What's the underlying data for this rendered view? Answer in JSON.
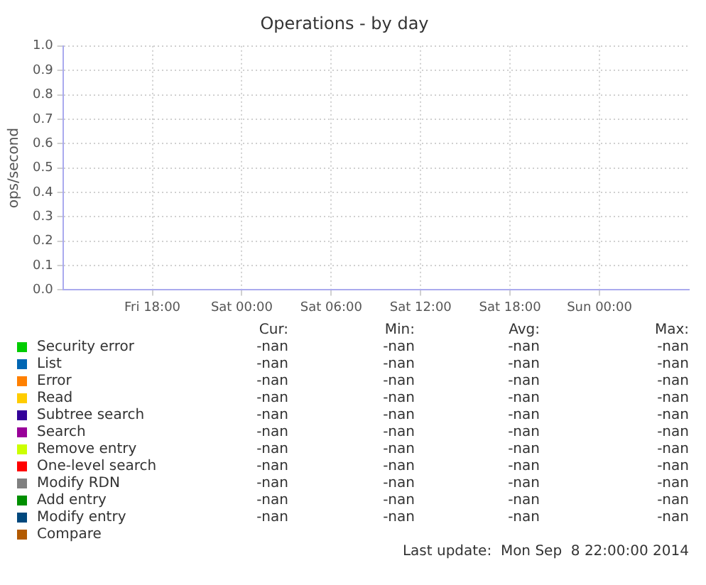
{
  "chart_data": {
    "type": "line",
    "title": "Operations - by day",
    "ylabel": "ops/second",
    "categories": [
      null,
      "Fri 18:00",
      "Sat 00:00",
      "Sat 06:00",
      "Sat 12:00",
      "Sat 18:00",
      "Sun 00:00",
      null
    ],
    "ylim": [
      0,
      1
    ],
    "yticks": [
      {
        "value": 0,
        "label": "0.0"
      },
      {
        "value": 0.1,
        "label": "0.1"
      },
      {
        "value": 0.2,
        "label": "0.2"
      },
      {
        "value": 0.3,
        "label": "0.3"
      },
      {
        "value": 0.4,
        "label": "0.4"
      },
      {
        "value": 0.5,
        "label": "0.5"
      },
      {
        "value": 0.6,
        "label": "0.6"
      },
      {
        "value": 0.7,
        "label": "0.7"
      },
      {
        "value": 0.8,
        "label": "0.8"
      },
      {
        "value": 0.9,
        "label": "0.9"
      },
      {
        "value": 1,
        "label": "1.0"
      }
    ],
    "grid": true,
    "legend": "bottom",
    "series": [
      {
        "name": "Security error",
        "color": "#00cc00",
        "values": [
          null,
          null,
          null,
          null,
          null,
          null,
          null,
          null
        ]
      },
      {
        "name": "List",
        "color": "#0066b3",
        "values": [
          null,
          null,
          null,
          null,
          null,
          null,
          null,
          null
        ]
      },
      {
        "name": "Error",
        "color": "#ff8000",
        "values": [
          null,
          null,
          null,
          null,
          null,
          null,
          null,
          null
        ]
      },
      {
        "name": "Read",
        "color": "#ffcc00",
        "values": [
          null,
          null,
          null,
          null,
          null,
          null,
          null,
          null
        ]
      },
      {
        "name": "Subtree search",
        "color": "#330099",
        "values": [
          null,
          null,
          null,
          null,
          null,
          null,
          null,
          null
        ]
      },
      {
        "name": "Search",
        "color": "#990099",
        "values": [
          null,
          null,
          null,
          null,
          null,
          null,
          null,
          null
        ]
      },
      {
        "name": "Remove entry",
        "color": "#ccff00",
        "values": [
          null,
          null,
          null,
          null,
          null,
          null,
          null,
          null
        ]
      },
      {
        "name": "One-level search",
        "color": "#ff0000",
        "values": [
          null,
          null,
          null,
          null,
          null,
          null,
          null,
          null
        ]
      },
      {
        "name": "Modify RDN",
        "color": "#808080",
        "values": [
          null,
          null,
          null,
          null,
          null,
          null,
          null,
          null
        ]
      },
      {
        "name": "Add entry",
        "color": "#008f00",
        "values": [
          null,
          null,
          null,
          null,
          null,
          null,
          null,
          null
        ]
      },
      {
        "name": "Modify entry",
        "color": "#00487d",
        "values": [
          null,
          null,
          null,
          null,
          null,
          null,
          null,
          null
        ]
      },
      {
        "name": "Compare",
        "color": "#b35a00",
        "values": [
          null,
          null,
          null,
          null,
          null,
          null,
          null,
          null
        ]
      }
    ],
    "annotations": [
      "Cur:",
      "Min:",
      "Avg:",
      "Max:",
      "Last update:  Mon Sep  8 22:00:00 2014",
      "-nan",
      "-nan",
      "-nan",
      "-nan",
      "-nan",
      "-nan",
      "-nan",
      "-nan",
      "-nan",
      "-nan",
      "-nan",
      "-nan",
      "-nan",
      "-nan",
      "-nan",
      "-nan",
      "-nan",
      "-nan",
      "-nan",
      "-nan",
      "-nan",
      "-nan",
      "-nan",
      "-nan",
      "-nan",
      "-nan",
      "-nan",
      "-nan",
      "-nan",
      "-nan",
      "-nan",
      "-nan",
      "-nan",
      "-nan",
      "-nan",
      "-nan",
      "-nan",
      "-nan",
      "-nan",
      "-nan",
      "-nan",
      "-nan",
      "-nan",
      "-nan"
    ]
  }
}
